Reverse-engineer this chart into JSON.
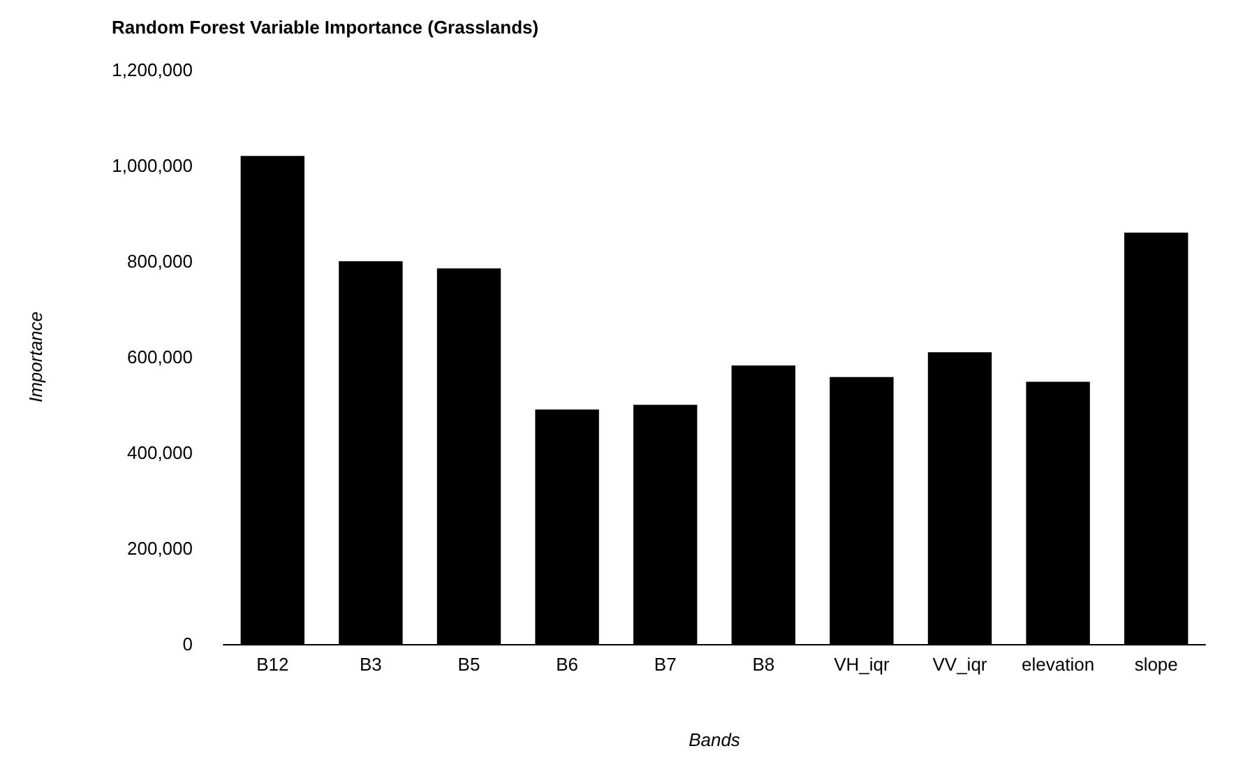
{
  "chart_data": {
    "type": "bar",
    "title": "Random Forest Variable Importance (Grasslands)",
    "xlabel": "Bands",
    "ylabel": "Importance",
    "categories": [
      "B12",
      "B3",
      "B5",
      "B6",
      "B7",
      "B8",
      "VH_iqr",
      "VV_iqr",
      "elevation",
      "slope"
    ],
    "values": [
      1020000,
      800000,
      785000,
      490000,
      500000,
      582000,
      558000,
      610000,
      548000,
      860000
    ],
    "color": "#000000",
    "ylim": [
      0,
      1200000
    ],
    "yticks": [
      0,
      {
        "value": 200000,
        "label": "200,000"
      },
      {
        "value": 400000,
        "label": "400,000"
      },
      {
        "value": 600000,
        "label": "600,000"
      },
      {
        "value": 800000,
        "label": "800,000"
      },
      {
        "value": 1000000,
        "label": "1,000,000"
      },
      {
        "value": 1200000,
        "label": "1,200,000"
      }
    ],
    "grid": false
  }
}
